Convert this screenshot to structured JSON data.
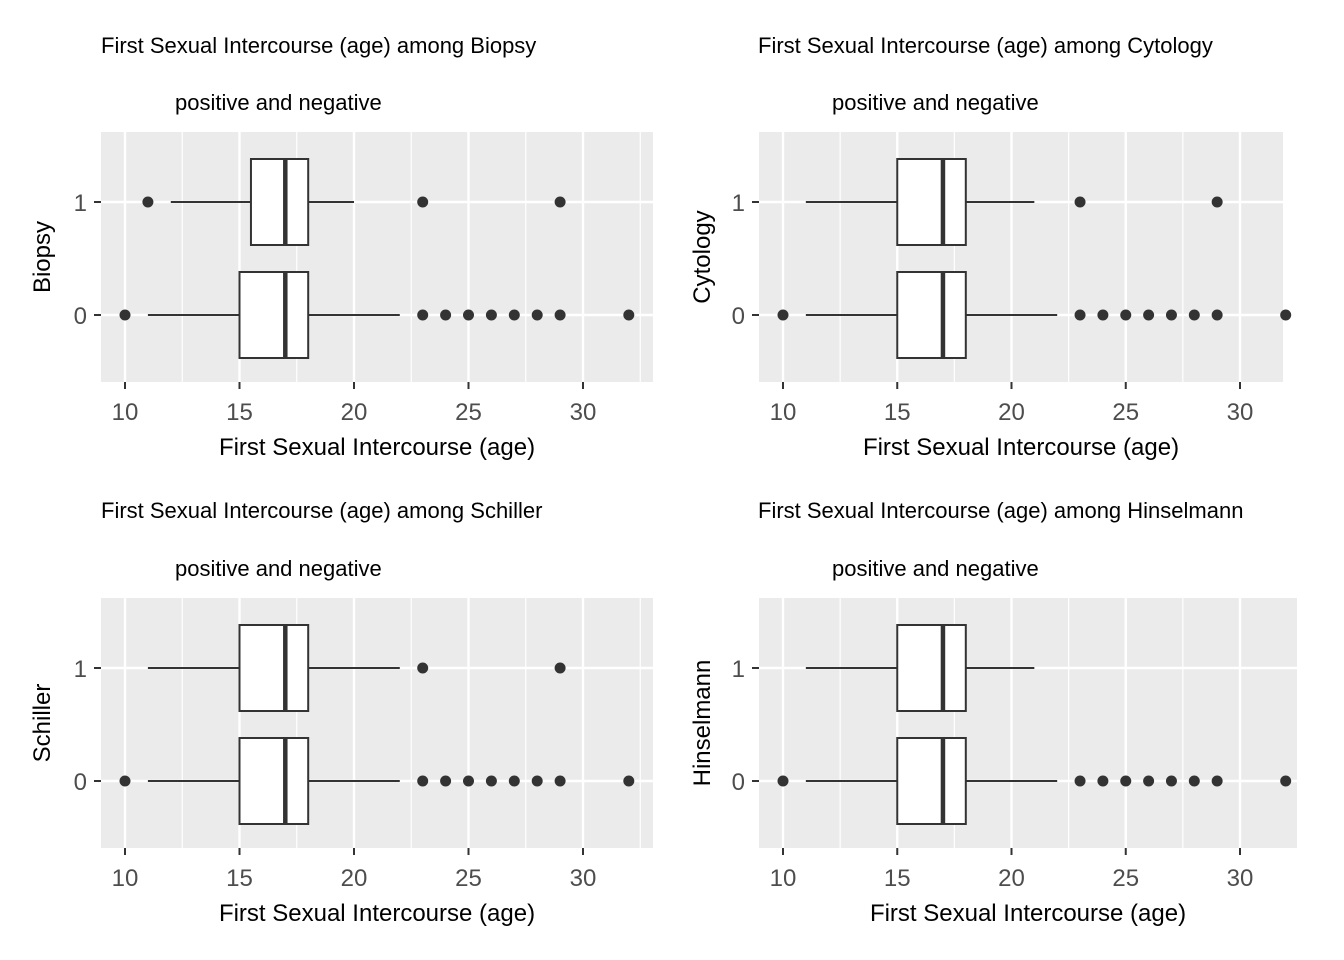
{
  "chart_data": [
    {
      "type": "boxplot",
      "title": "First Sexual Intercourse (age) among Biopsy",
      "subtitle": "positive and negative",
      "xlabel": "First Sexual Intercourse (age)",
      "ylabel": "Biopsy",
      "xlim": [
        9,
        33
      ],
      "x_ticks": [
        10,
        15,
        20,
        25,
        30
      ],
      "categories": [
        "0",
        "1"
      ],
      "grid": true,
      "boxes": [
        {
          "group": "0",
          "whisker_low": 11,
          "q1": 15,
          "median": 17,
          "q3": 18,
          "whisker_high": 22,
          "outliers": [
            10,
            23,
            24,
            25,
            26,
            27,
            28,
            29,
            32
          ]
        },
        {
          "group": "1",
          "whisker_low": 12,
          "q1": 15.5,
          "median": 17,
          "q3": 18,
          "whisker_high": 20,
          "outliers": [
            11,
            23,
            29
          ]
        }
      ]
    },
    {
      "type": "boxplot",
      "title": "First Sexual Intercourse (age) among Cytology",
      "subtitle": "positive and negative",
      "xlabel": "First Sexual Intercourse (age)",
      "ylabel": "Cytology",
      "xlim": [
        9,
        33
      ],
      "x_ticks": [
        10,
        15,
        20,
        25,
        30
      ],
      "categories": [
        "0",
        "1"
      ],
      "grid": true,
      "boxes": [
        {
          "group": "0",
          "whisker_low": 11,
          "q1": 15,
          "median": 17,
          "q3": 18,
          "whisker_high": 22,
          "outliers": [
            10,
            23,
            24,
            25,
            26,
            27,
            28,
            29,
            32
          ]
        },
        {
          "group": "1",
          "whisker_low": 11,
          "q1": 15,
          "median": 17,
          "q3": 18,
          "whisker_high": 21,
          "outliers": [
            23,
            29
          ]
        }
      ]
    },
    {
      "type": "boxplot",
      "title": "First Sexual Intercourse (age) among Schiller",
      "subtitle": "positive and negative",
      "xlabel": "First Sexual Intercourse (age)",
      "ylabel": "Schiller",
      "xlim": [
        9,
        33
      ],
      "x_ticks": [
        10,
        15,
        20,
        25,
        30
      ],
      "categories": [
        "0",
        "1"
      ],
      "grid": true,
      "boxes": [
        {
          "group": "0",
          "whisker_low": 11,
          "q1": 15,
          "median": 17,
          "q3": 18,
          "whisker_high": 22,
          "outliers": [
            10,
            23,
            24,
            25,
            26,
            27,
            28,
            29,
            32
          ]
        },
        {
          "group": "1",
          "whisker_low": 11,
          "q1": 15,
          "median": 17,
          "q3": 18,
          "whisker_high": 22,
          "outliers": [
            23,
            29
          ]
        }
      ]
    },
    {
      "type": "boxplot",
      "title": "First Sexual Intercourse (age) among Hinselmann",
      "subtitle": "positive and negative",
      "xlabel": "First Sexual Intercourse (age)",
      "ylabel": "Hinselmann",
      "xlim": [
        9,
        33
      ],
      "x_ticks": [
        10,
        15,
        20,
        25,
        30
      ],
      "categories": [
        "0",
        "1"
      ],
      "grid": true,
      "boxes": [
        {
          "group": "0",
          "whisker_low": 11,
          "q1": 15,
          "median": 17,
          "q3": 18,
          "whisker_high": 22,
          "outliers": [
            10,
            23,
            24,
            25,
            26,
            27,
            28,
            29,
            32
          ]
        },
        {
          "group": "1",
          "whisker_low": 11,
          "q1": 15,
          "median": 17,
          "q3": 18,
          "whisker_high": 21,
          "outliers": []
        }
      ]
    }
  ]
}
